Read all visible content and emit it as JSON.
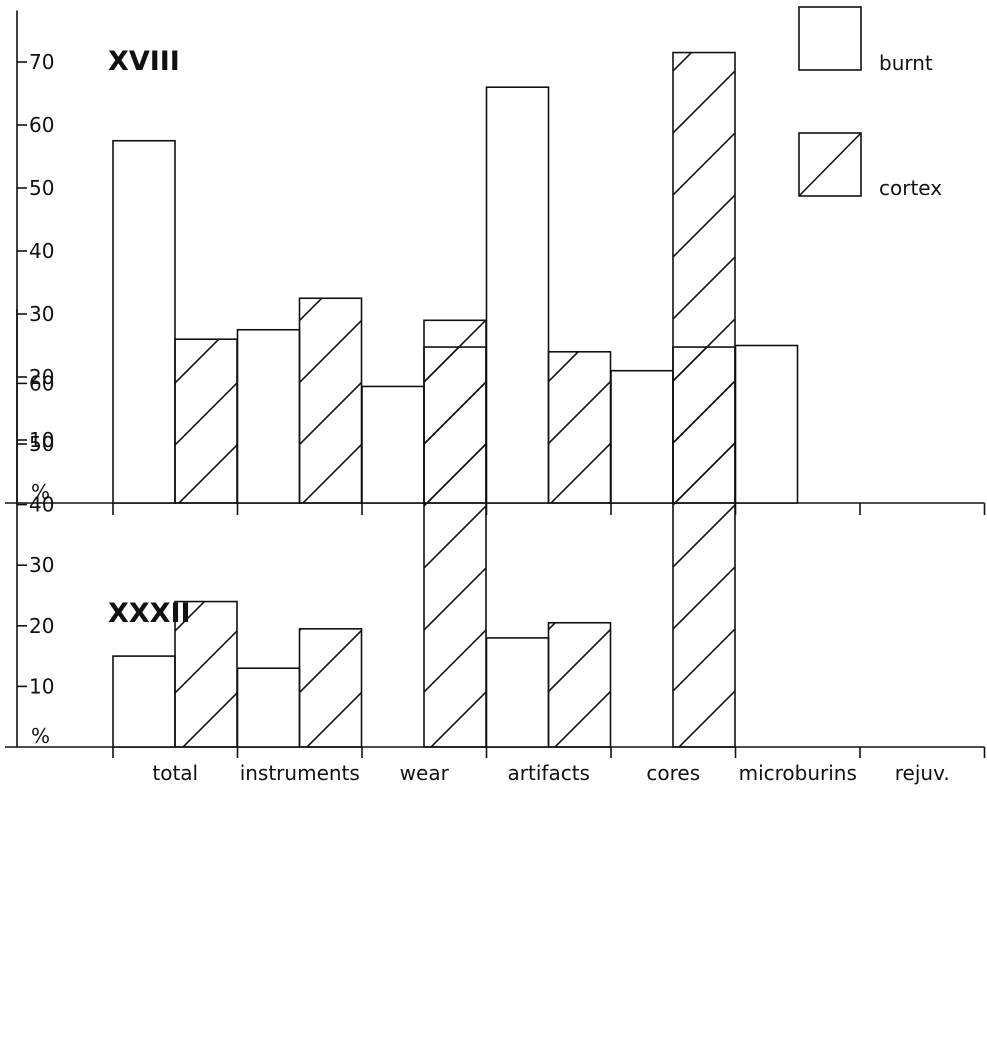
{
  "chart_data": [
    {
      "type": "bar",
      "title": "XVIII",
      "ylabel": "%",
      "yticks": [
        10,
        20,
        30,
        40,
        50,
        60,
        70
      ],
      "ylim": [
        0,
        75
      ],
      "categories": [
        "total",
        "instruments",
        "wear",
        "artifacts",
        "cores",
        "microburins",
        "rejuv."
      ],
      "series": [
        {
          "name": "burnt",
          "pattern": "plain",
          "values": [
            57.5,
            27.5,
            18.5,
            66,
            21,
            25,
            0
          ]
        },
        {
          "name": "cortex",
          "pattern": "hatched",
          "values": [
            26,
            32.5,
            29,
            24,
            71.5,
            0,
            0
          ]
        }
      ],
      "legend": "top-right",
      "grid": false
    },
    {
      "type": "bar",
      "title": "XXXII",
      "ylabel": "%",
      "yticks": [
        10,
        20,
        30,
        40,
        50,
        60
      ],
      "ylim": [
        0,
        69
      ],
      "categories": [
        "total",
        "instruments",
        "wear",
        "artifacts",
        "cores",
        "microburins",
        "rejuv."
      ],
      "series": [
        {
          "name": "burnt",
          "pattern": "plain",
          "values": [
            15,
            13,
            0,
            18,
            0,
            0,
            0
          ]
        },
        {
          "name": "cortex",
          "pattern": "hatched",
          "values": [
            24,
            19.5,
            66,
            20.5,
            66,
            0,
            0
          ]
        }
      ],
      "legend": "none",
      "grid": false
    }
  ]
}
